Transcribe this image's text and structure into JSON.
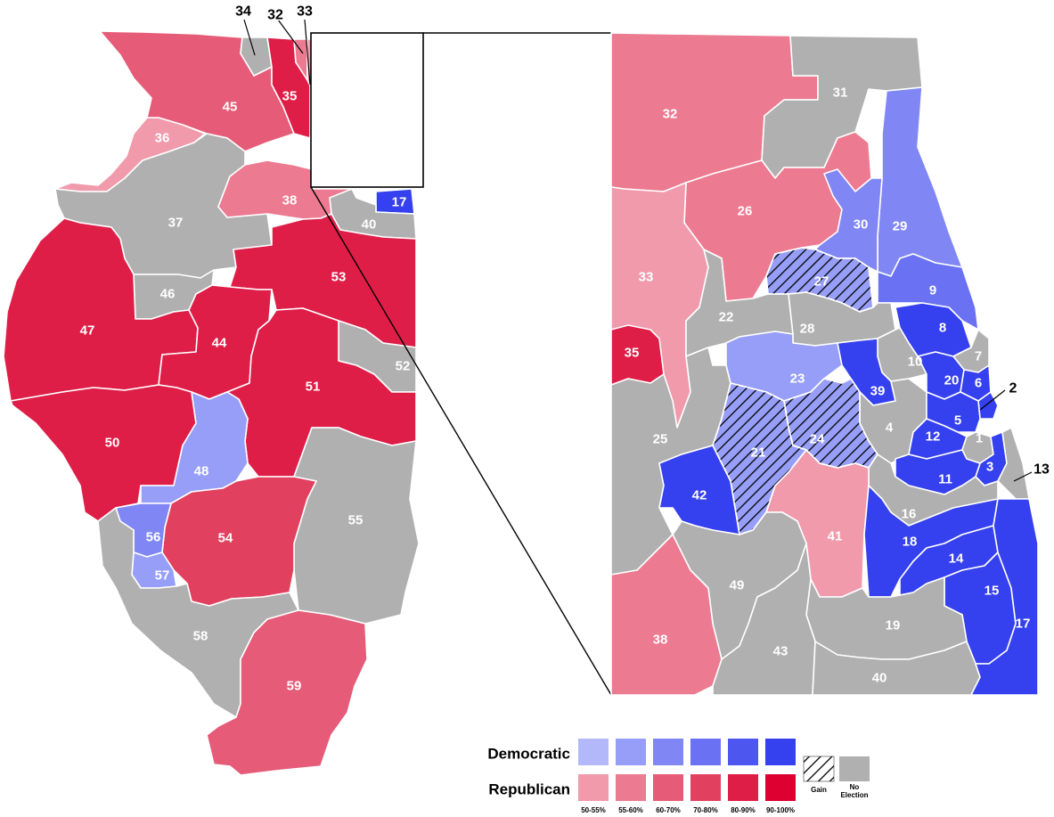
{
  "colors": {
    "dem": [
      "#b3b8fb",
      "#979ef7",
      "#8087f4",
      "#6a71f2",
      "#4e56f0",
      "#3540ef"
    ],
    "rep": [
      "#f09aac",
      "#ec7a90",
      "#e65b77",
      "#e2405f",
      "#df1e48",
      "#dd0030"
    ],
    "none": "#b0b0b0"
  },
  "legend": {
    "democratic_label": "Democratic",
    "republican_label": "Republican",
    "ranges": [
      "50-55%",
      "55-60%",
      "60-70%",
      "70-80%",
      "80-90%",
      "90-100%"
    ],
    "gain_label": "Gain",
    "no_election_label": "No Election"
  },
  "districts_state": [
    {
      "id": "34",
      "party": "none"
    },
    {
      "id": "32",
      "party": "rep",
      "level": 1
    },
    {
      "id": "33",
      "party": "rep",
      "level": 0
    },
    {
      "id": "35",
      "party": "rep",
      "level": 4
    },
    {
      "id": "36",
      "party": "rep",
      "level": 0
    },
    {
      "id": "45",
      "party": "rep",
      "level": 2
    },
    {
      "id": "37",
      "party": "none"
    },
    {
      "id": "38",
      "party": "rep",
      "level": 1
    },
    {
      "id": "17",
      "party": "dem",
      "level": 5
    },
    {
      "id": "40",
      "party": "none"
    },
    {
      "id": "46",
      "party": "none"
    },
    {
      "id": "53",
      "party": "rep",
      "level": 4
    },
    {
      "id": "47",
      "party": "rep",
      "level": 4
    },
    {
      "id": "44",
      "party": "rep",
      "level": 4
    },
    {
      "id": "52",
      "party": "none"
    },
    {
      "id": "51",
      "party": "rep",
      "level": 4
    },
    {
      "id": "50",
      "party": "rep",
      "level": 4
    },
    {
      "id": "48",
      "party": "dem",
      "level": 1
    },
    {
      "id": "55",
      "party": "none"
    },
    {
      "id": "54",
      "party": "rep",
      "level": 3
    },
    {
      "id": "56",
      "party": "dem",
      "level": 2
    },
    {
      "id": "57",
      "party": "dem",
      "level": 1
    },
    {
      "id": "58",
      "party": "none"
    },
    {
      "id": "59",
      "party": "rep",
      "level": 2
    }
  ],
  "districts_inset": [
    {
      "id": "31",
      "party": "none"
    },
    {
      "id": "32",
      "party": "rep",
      "level": 1
    },
    {
      "id": "26",
      "party": "rep",
      "level": 1
    },
    {
      "id": "30",
      "party": "dem",
      "level": 2
    },
    {
      "id": "29",
      "party": "dem",
      "level": 2
    },
    {
      "id": "33",
      "party": "rep",
      "level": 0
    },
    {
      "id": "27",
      "party": "dem",
      "level": 1,
      "gain": true
    },
    {
      "id": "9",
      "party": "dem",
      "level": 3
    },
    {
      "id": "22",
      "party": "none"
    },
    {
      "id": "28",
      "party": "none"
    },
    {
      "id": "8",
      "party": "dem",
      "level": 5
    },
    {
      "id": "35",
      "party": "rep",
      "level": 4
    },
    {
      "id": "10",
      "party": "none"
    },
    {
      "id": "7",
      "party": "none"
    },
    {
      "id": "23",
      "party": "dem",
      "level": 1
    },
    {
      "id": "39",
      "party": "dem",
      "level": 5
    },
    {
      "id": "20",
      "party": "dem",
      "level": 5
    },
    {
      "id": "6",
      "party": "dem",
      "level": 5
    },
    {
      "id": "2",
      "party": "dem",
      "level": 5
    },
    {
      "id": "25",
      "party": "none"
    },
    {
      "id": "4",
      "party": "none"
    },
    {
      "id": "5",
      "party": "dem",
      "level": 5
    },
    {
      "id": "24",
      "party": "dem",
      "level": 1,
      "gain": true
    },
    {
      "id": "12",
      "party": "dem",
      "level": 5
    },
    {
      "id": "1",
      "party": "none"
    },
    {
      "id": "21",
      "party": "dem",
      "level": 1,
      "gain": true
    },
    {
      "id": "3",
      "party": "dem",
      "level": 5
    },
    {
      "id": "13",
      "party": "none"
    },
    {
      "id": "11",
      "party": "dem",
      "level": 5
    },
    {
      "id": "42",
      "party": "dem",
      "level": 5
    },
    {
      "id": "16",
      "party": "none"
    },
    {
      "id": "41",
      "party": "rep",
      "level": 0
    },
    {
      "id": "18",
      "party": "dem",
      "level": 5
    },
    {
      "id": "14",
      "party": "dem",
      "level": 5
    },
    {
      "id": "49",
      "party": "none"
    },
    {
      "id": "15",
      "party": "dem",
      "level": 5
    },
    {
      "id": "19",
      "party": "none"
    },
    {
      "id": "38",
      "party": "rep",
      "level": 1
    },
    {
      "id": "43",
      "party": "none"
    },
    {
      "id": "17",
      "party": "dem",
      "level": 5
    },
    {
      "id": "40",
      "party": "none"
    }
  ]
}
